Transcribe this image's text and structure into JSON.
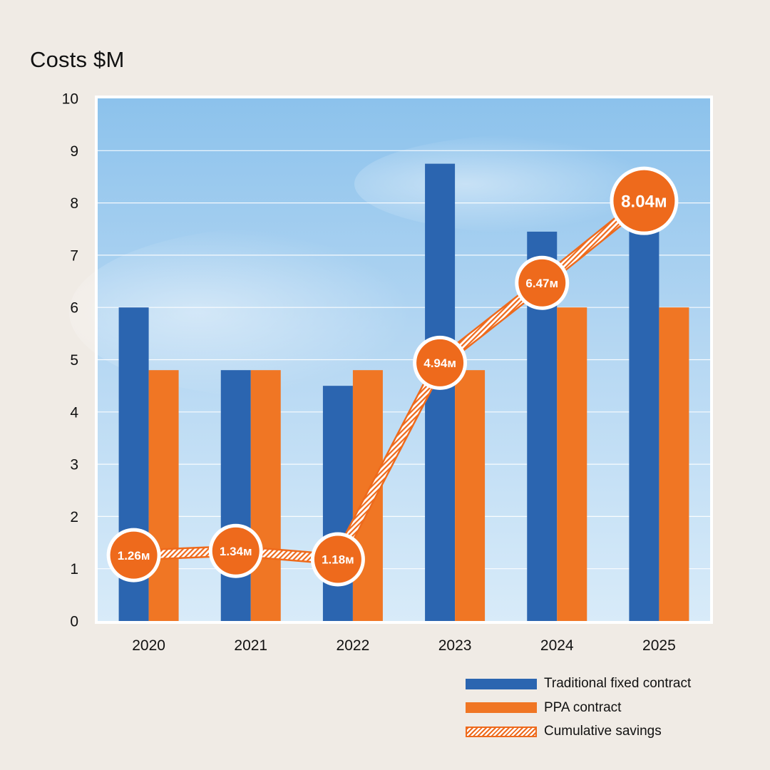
{
  "chart_data": {
    "type": "bar",
    "title": "",
    "ylabel": "Costs $M",
    "xlabel": "",
    "ylim": [
      0,
      10
    ],
    "yticks": [
      0,
      1,
      2,
      3,
      4,
      5,
      6,
      7,
      8,
      9,
      10
    ],
    "categories": [
      "2020",
      "2021",
      "2022",
      "2023",
      "2024",
      "2025"
    ],
    "series": [
      {
        "name": "Traditional fixed contract",
        "kind": "bar",
        "color": "#2b65b0",
        "values": [
          6.0,
          4.8,
          4.5,
          8.75,
          7.45,
          7.45
        ]
      },
      {
        "name": "PPA contract",
        "kind": "bar",
        "color": "#f07624",
        "values": [
          4.8,
          4.8,
          4.8,
          4.8,
          6.0,
          6.0
        ]
      },
      {
        "name": "Cumulative savings",
        "kind": "line",
        "color": "#ee6a1c",
        "values": [
          1.26,
          1.34,
          1.18,
          4.94,
          6.47,
          8.04
        ],
        "labels": [
          "1.26м",
          "1.34м",
          "1.18м",
          "4.94м",
          "6.47м",
          "8.04м"
        ]
      }
    ],
    "grid": true,
    "legend_position": "bottom-right"
  }
}
